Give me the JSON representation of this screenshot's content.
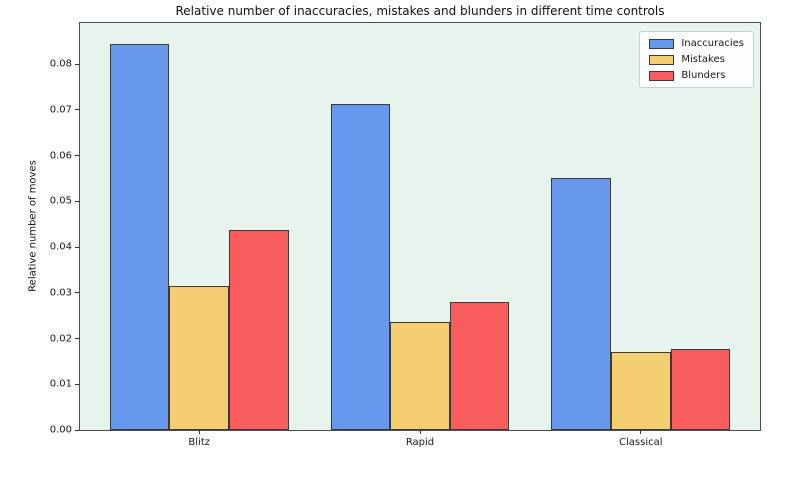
{
  "chart_data": {
    "type": "bar",
    "title": "Relative number of inaccuracies, mistakes and blunders in different time controls",
    "xlabel": "",
    "ylabel": "Relative number of moves",
    "categories": [
      "Blitz",
      "Rapid",
      "Classical"
    ],
    "series": [
      {
        "name": "Inaccuracies",
        "color": "#6699ee",
        "values": [
          0.0845,
          0.0713,
          0.0552
        ]
      },
      {
        "name": "Mistakes",
        "color": "#f5ce72",
        "values": [
          0.0315,
          0.0236,
          0.017
        ]
      },
      {
        "name": "Blunders",
        "color": "#f85c5c",
        "values": [
          0.0437,
          0.028,
          0.0177
        ]
      }
    ],
    "ylim": [
      0,
      0.089
    ],
    "xlim": [
      -0.54,
      2.54
    ],
    "bar_width": 0.27,
    "yticks": [
      0,
      0.01,
      0.02,
      0.03,
      0.04,
      0.05,
      0.06,
      0.07,
      0.08
    ],
    "ytick_format_decimals": 2,
    "grid": false,
    "legend": {
      "position": "upper right",
      "entries": [
        "Inaccuracies",
        "Mistakes",
        "Blunders"
      ]
    },
    "colors": {
      "figure_background": "#ffffff",
      "plot_background": "#e7f4ee",
      "bar_edge": "#3a3a3a",
      "spine": "#4d4d4d",
      "text": "#1a1a1a"
    }
  }
}
